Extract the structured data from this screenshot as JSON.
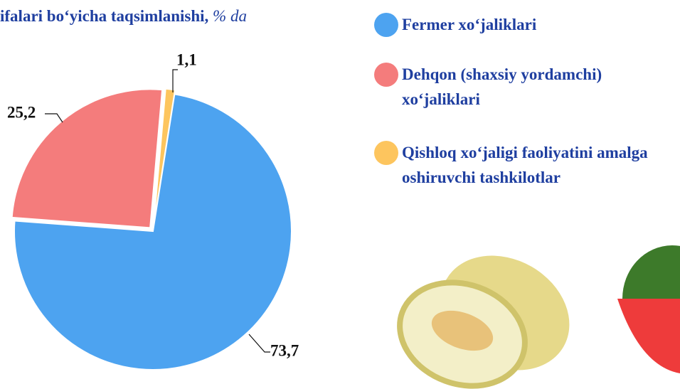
{
  "chart_data": {
    "type": "pie",
    "title": "ifalari bo‘yicha taqsimlanishi,",
    "subtitle": "% da",
    "categories": [
      "Qishloq xo‘jaligi faoliyatini amalga oshiruvchi tashkilotlar",
      "Fermer xo‘jaliklari",
      "Dehqon (shaxsiy yordamchi) xo‘jaliklari"
    ],
    "values": [
      1.1,
      73.7,
      25.2
    ],
    "value_labels": [
      "1,1",
      "73,7",
      "25,2"
    ],
    "colors": [
      "#fdc55e",
      "#4da3f0",
      "#f47c7c"
    ],
    "legend_order": [
      1,
      2,
      0
    ]
  }
}
